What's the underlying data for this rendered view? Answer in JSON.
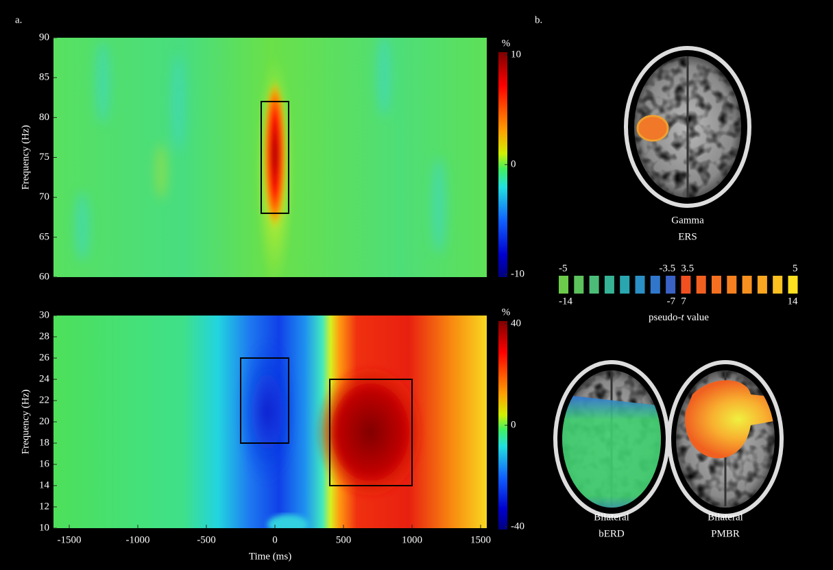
{
  "panel_a_label": "a.",
  "chart_data": [
    {
      "type": "heatmap",
      "ylabel": "Frequency (Hz)",
      "xlim": [
        -1615,
        1545
      ],
      "ylim": [
        60,
        90
      ],
      "yticks": [
        60,
        65,
        70,
        75,
        80,
        85,
        90
      ],
      "boxes": [
        {
          "x": [
            -100,
            100
          ],
          "y": [
            68,
            82
          ]
        }
      ],
      "colorbar_label": "%",
      "clim": [
        -10,
        10
      ],
      "cticks": [
        -10,
        0,
        10
      ],
      "grid": false
    },
    {
      "type": "heatmap",
      "ylabel": "Frequency (Hz)",
      "xlabel": "Time (ms)",
      "xlim": [
        -1615,
        1545
      ],
      "xticks": [
        -1500,
        -1000,
        -500,
        0,
        500,
        1000,
        1500
      ],
      "ylim": [
        10,
        30
      ],
      "yticks": [
        10,
        12,
        14,
        16,
        18,
        20,
        22,
        24,
        26,
        28,
        30
      ],
      "boxes": [
        {
          "x": [
            -250,
            100
          ],
          "y": [
            18,
            26
          ]
        },
        {
          "x": [
            400,
            1000
          ],
          "y": [
            14,
            24
          ]
        }
      ],
      "colorbar_label": "%",
      "clim": [
        -40,
        40
      ],
      "cticks": [
        -40,
        0,
        40
      ],
      "grid": false
    }
  ],
  "panel_b": {
    "label": "b.",
    "brains": [
      {
        "lines": [
          "Gamma",
          "ERS"
        ]
      },
      {
        "lines": [
          "Bilateral",
          "bERD"
        ]
      },
      {
        "lines": [
          "Bilateral",
          "PMBR"
        ]
      }
    ],
    "colorbar": {
      "top_ticks": [
        -5,
        -3.5,
        3.5,
        5
      ],
      "bottom_ticks": [
        -14,
        -7,
        7,
        14
      ],
      "label_pre": "pseudo-",
      "label_italic": "t",
      "label_post": " value"
    }
  }
}
